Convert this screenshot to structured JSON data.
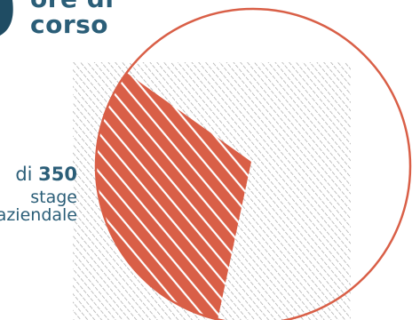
{
  "header": {
    "line1": "ore di",
    "line2": "corso"
  },
  "stat": {
    "prefix": "di ",
    "value": "350",
    "line2": "stage",
    "line3": "aziendale"
  },
  "colors": {
    "teal": "#2b5e78",
    "accent": "#d95f47",
    "hatch": "#9a9a9a"
  }
}
